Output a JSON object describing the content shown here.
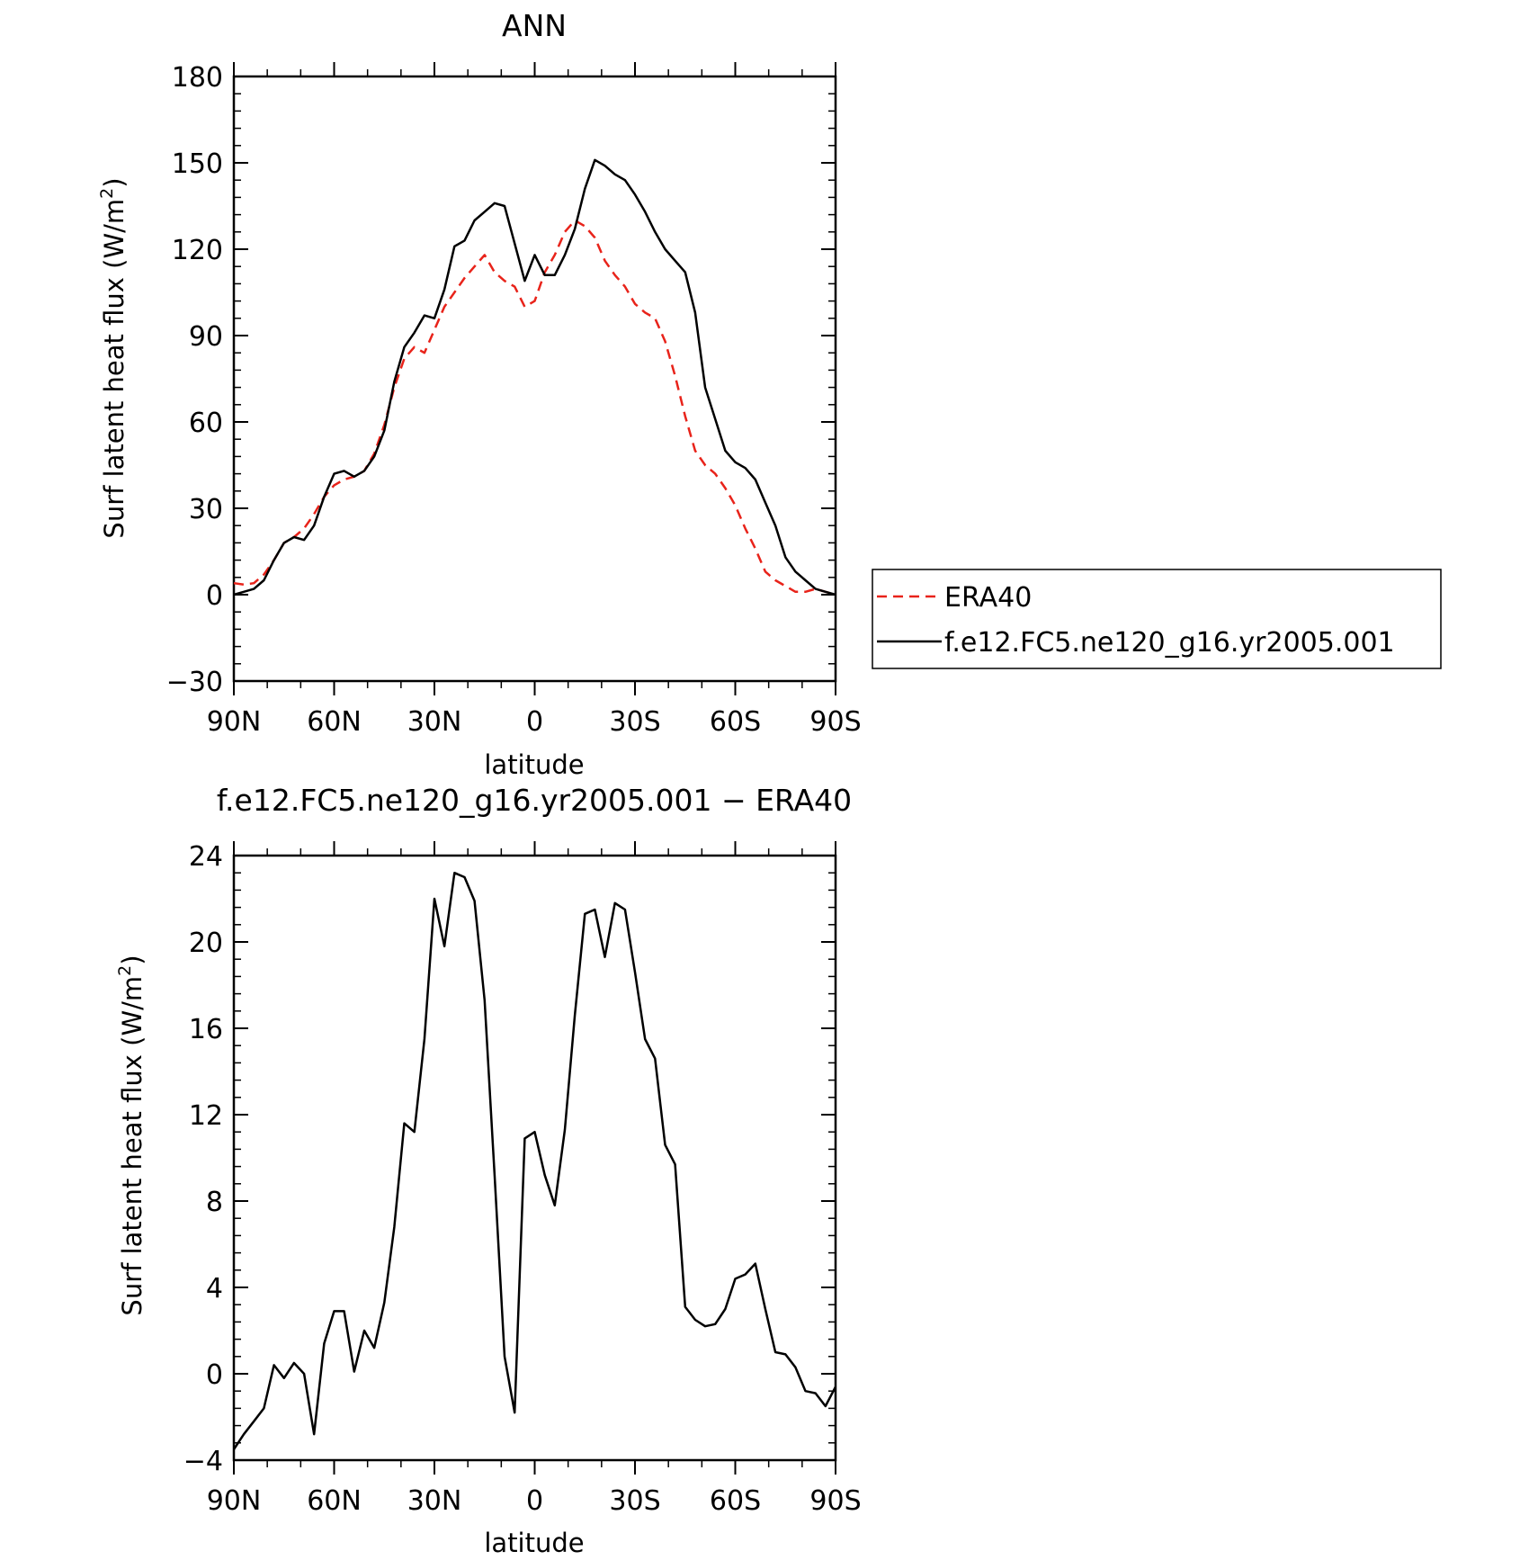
{
  "chart_data": [
    {
      "type": "line",
      "title": "ANN",
      "xlabel": "latitude",
      "ylabel": "Surf latent heat flux (W/m",
      "ylabel_sup": "2",
      "ylabel_close": ")",
      "xlim": [
        90,
        -90
      ],
      "ylim": [
        -30,
        180
      ],
      "xticks": [
        90,
        60,
        30,
        0,
        -30,
        -60,
        -90
      ],
      "xtick_labels": [
        "90N",
        "60N",
        "30N",
        "0",
        "30S",
        "60S",
        "90S"
      ],
      "yticks": [
        -30,
        0,
        30,
        60,
        90,
        120,
        150,
        180
      ],
      "ytick_labels": [
        "−30",
        "0",
        "30",
        "60",
        "90",
        "120",
        "150",
        "180"
      ],
      "legend": {
        "placement": "right",
        "entries": [
          "ERA40",
          "f.e12.FC5.ne120_g16.yr2005.001"
        ]
      },
      "series": [
        {
          "name": "ERA40",
          "color": "#e8231a",
          "dash": "dashed",
          "x": [
            90,
            87,
            84,
            81,
            78,
            75,
            72,
            69,
            66,
            63,
            60,
            57,
            54,
            51,
            48,
            45,
            42,
            39,
            36,
            33,
            30,
            27,
            24,
            21,
            18,
            15,
            12,
            9,
            6,
            3,
            0,
            -3,
            -6,
            -9,
            -12,
            -15,
            -18,
            -21,
            -24,
            -27,
            -30,
            -33,
            -36,
            -39,
            -42,
            -45,
            -48,
            -51,
            -54,
            -57,
            -60,
            -63,
            -66,
            -69,
            -72,
            -75,
            -78,
            -81,
            -84,
            -87,
            -90
          ],
          "y": [
            4,
            3.5,
            4,
            7,
            12,
            18,
            20,
            23,
            28,
            34,
            38,
            40,
            41,
            43,
            49,
            59,
            72,
            82,
            86,
            84,
            92,
            100,
            105,
            110,
            114,
            118,
            112,
            109,
            107,
            100,
            102,
            112,
            118,
            126,
            130,
            128,
            124,
            116,
            111,
            107,
            101,
            98,
            96,
            88,
            76,
            62,
            50,
            45,
            42,
            37,
            31,
            23,
            16,
            8,
            5,
            3,
            1,
            1,
            2,
            1,
            0
          ]
        },
        {
          "name": "f.e12.FC5.ne120_g16.yr2005.001",
          "color": "#000000",
          "dash": "solid",
          "x": [
            90,
            87,
            84,
            81,
            78,
            75,
            72,
            69,
            66,
            63,
            60,
            57,
            54,
            51,
            48,
            45,
            42,
            39,
            36,
            33,
            30,
            27,
            24,
            21,
            18,
            15,
            12,
            9,
            6,
            3,
            0,
            -3,
            -6,
            -9,
            -12,
            -15,
            -18,
            -21,
            -24,
            -27,
            -30,
            -33,
            -36,
            -39,
            -42,
            -45,
            -48,
            -51,
            -54,
            -57,
            -60,
            -63,
            -66,
            -69,
            -72,
            -75,
            -78,
            -81,
            -84,
            -87,
            -90
          ],
          "y": [
            0,
            1,
            2,
            5,
            12,
            18,
            20,
            19,
            24,
            34,
            42,
            43,
            41,
            43,
            48,
            57,
            74,
            86,
            91,
            97,
            96,
            106,
            121,
            123,
            130,
            133,
            136,
            135,
            122,
            109,
            118,
            111,
            111,
            118,
            127,
            141,
            151,
            149,
            146,
            144,
            139,
            133,
            126,
            120,
            116,
            112,
            98,
            72,
            61,
            50,
            46,
            44,
            40,
            32,
            24,
            13,
            8,
            5,
            2,
            1,
            0
          ]
        }
      ]
    },
    {
      "type": "line",
      "title": "f.e12.FC5.ne120_g16.yr2005.001 − ERA40",
      "xlabel": "latitude",
      "ylabel": "Surf latent heat flux (W/m",
      "ylabel_sup": "2",
      "ylabel_close": ")",
      "xlim": [
        90,
        -90
      ],
      "ylim": [
        -4,
        24
      ],
      "xticks": [
        90,
        60,
        30,
        0,
        -30,
        -60,
        -90
      ],
      "xtick_labels": [
        "90N",
        "60N",
        "30N",
        "0",
        "30S",
        "60S",
        "90S"
      ],
      "yticks": [
        -4,
        0,
        4,
        8,
        12,
        16,
        20,
        24
      ],
      "ytick_labels": [
        "−4",
        "0",
        "4",
        "8",
        "12",
        "16",
        "20",
        "24"
      ],
      "series": [
        {
          "color": "#000000",
          "dash": "solid",
          "x": [
            90,
            87,
            84,
            81,
            78,
            75,
            72,
            69,
            66,
            63,
            60,
            57,
            54,
            51,
            48,
            45,
            42,
            39,
            36,
            33,
            30,
            27,
            24,
            21,
            18,
            15,
            12,
            9,
            6,
            3,
            0,
            -3,
            -6,
            -9,
            -12,
            -15,
            -18,
            -21,
            -24,
            -27,
            -30,
            -33,
            -36,
            -39,
            -42,
            -45,
            -48,
            -51,
            -54,
            -57,
            -60,
            -63,
            -66,
            -69,
            -72,
            -75,
            -78,
            -81,
            -84,
            -87,
            -90
          ],
          "y": [
            -3.5,
            -2.8,
            -2.2,
            -1.6,
            0.4,
            -0.2,
            0.5,
            0,
            -2.8,
            1.4,
            2.9,
            2.9,
            0.1,
            2.0,
            1.2,
            3.3,
            6.8,
            11.6,
            11.2,
            15.5,
            22.0,
            19.8,
            23.2,
            23.0,
            21.9,
            17.3,
            9.2,
            0.8,
            -1.8,
            10.9,
            11.2,
            9.2,
            7.8,
            11.3,
            16.6,
            21.3,
            21.5,
            19.3,
            21.8,
            21.5,
            18.6,
            15.5,
            14.6,
            10.6,
            9.7,
            3.1,
            2.5,
            2.2,
            2.3,
            3.0,
            4.4,
            4.6,
            5.1,
            3.0,
            1.0,
            0.9,
            0.3,
            -0.8,
            -0.9,
            -1.5,
            -0.6
          ]
        }
      ]
    }
  ]
}
